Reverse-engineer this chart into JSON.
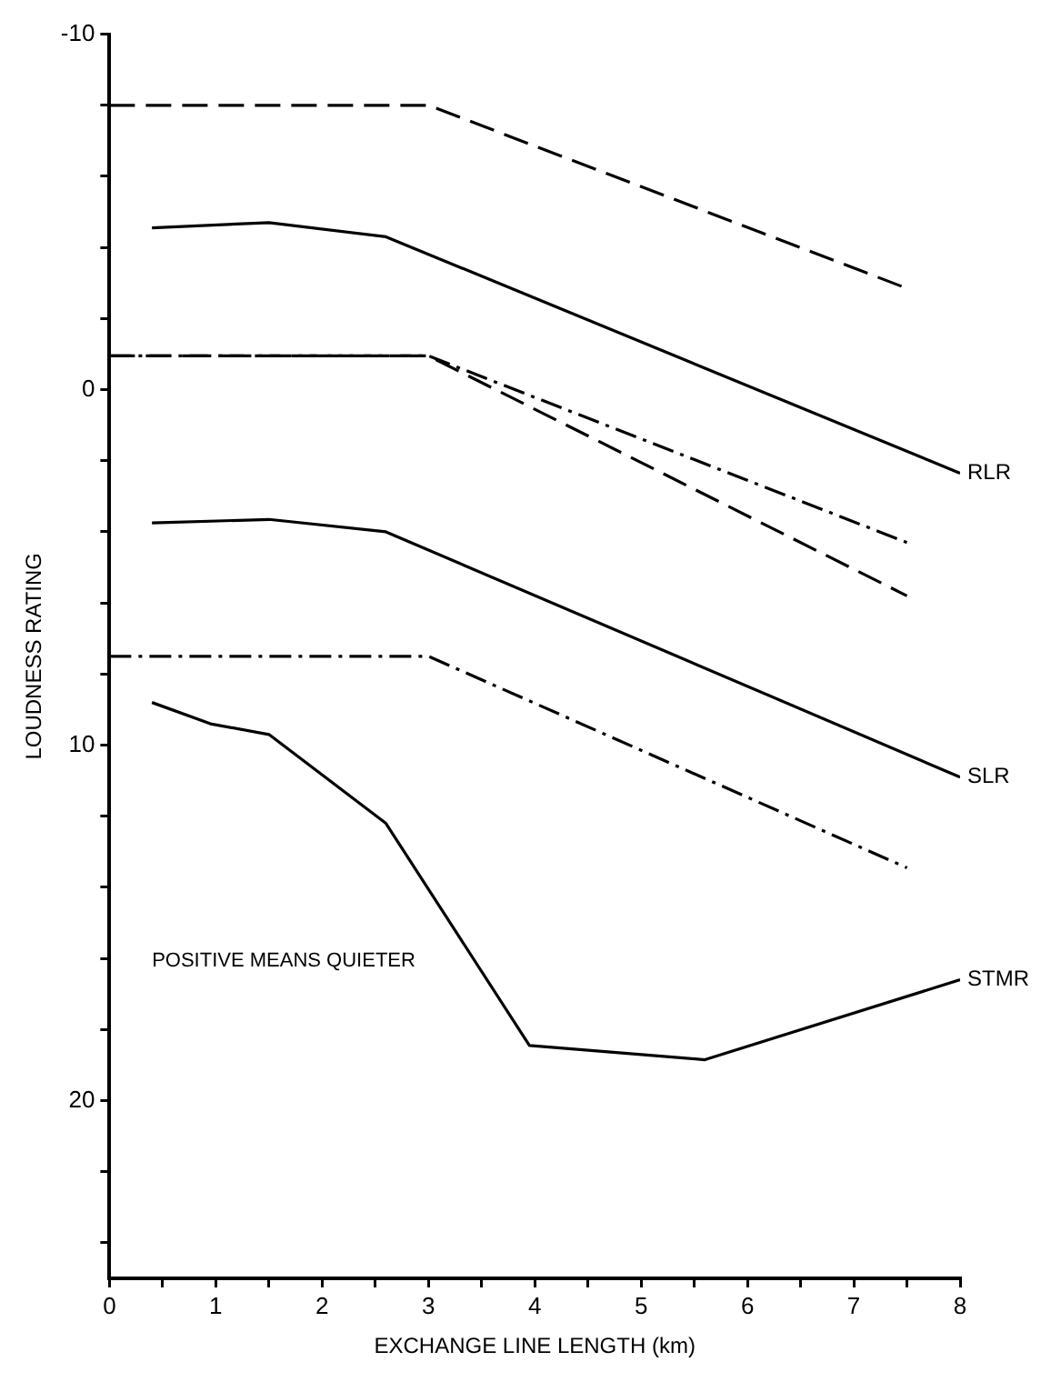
{
  "chart_data": {
    "type": "line",
    "xlabel": "EXCHANGE LINE LENGTH (km)",
    "ylabel": "LOUDNESS RATING",
    "annotations": [
      "POSITIVE MEANS QUIETER"
    ],
    "xlim": [
      0,
      8
    ],
    "xticks": [
      0,
      {
        "value": 0.5,
        "label": null
      },
      1,
      {
        "value": 1.5,
        "label": null
      },
      2,
      {
        "value": 2.5,
        "label": null
      },
      3,
      {
        "value": 3.5,
        "label": null
      },
      4,
      {
        "value": 4.5,
        "label": null
      },
      5,
      {
        "value": 5.5,
        "label": null
      },
      6,
      {
        "value": 6.5,
        "label": null
      },
      7,
      {
        "value": 7.5,
        "label": null
      },
      8
    ],
    "ylim": [
      25,
      -10
    ],
    "yticks": [
      -10,
      {
        "value": -8,
        "label": null
      },
      {
        "value": -6,
        "label": null
      },
      {
        "value": -4,
        "label": null
      },
      {
        "value": -2,
        "label": null
      },
      0,
      {
        "value": 2,
        "label": null
      },
      {
        "value": 4,
        "label": null
      },
      {
        "value": 6,
        "label": null
      },
      {
        "value": 8,
        "label": null
      },
      10,
      {
        "value": 12,
        "label": null
      },
      {
        "value": 14,
        "label": null
      },
      {
        "value": 16,
        "label": null
      },
      {
        "value": 18,
        "label": null
      },
      20,
      {
        "value": 22,
        "label": null
      },
      {
        "value": 24,
        "label": null
      }
    ],
    "grid": false,
    "legend": false,
    "marker": "none",
    "series": [
      {
        "color": "#000000",
        "line_style": "dashed",
        "x": [
          0,
          3,
          7.5
        ],
        "values": [
          -8.0,
          -8.0,
          -2.85
        ]
      },
      {
        "name": "RLR",
        "color": "#000000",
        "line_style": "solid",
        "x": [
          0.4,
          1.5,
          2.6,
          8
        ],
        "values": [
          -4.55,
          -4.7,
          -4.3,
          2.35
        ]
      },
      {
        "color": "#000000",
        "line_style": "dashdot",
        "x": [
          0,
          3,
          7.5
        ],
        "values": [
          -0.95,
          -0.95,
          4.3
        ]
      },
      {
        "color": "#000000",
        "line_style": "dashed",
        "x": [
          0,
          3,
          7.5
        ],
        "values": [
          -0.95,
          -0.95,
          5.8
        ]
      },
      {
        "name": "SLR",
        "color": "#000000",
        "line_style": "solid",
        "x": [
          0.4,
          1.5,
          2.6,
          8
        ],
        "values": [
          3.75,
          3.65,
          4.0,
          10.9
        ]
      },
      {
        "color": "#000000",
        "line_style": "dashdot",
        "x": [
          0,
          3,
          7.5
        ],
        "values": [
          7.5,
          7.5,
          13.45
        ]
      },
      {
        "name": "STMR",
        "color": "#000000",
        "line_style": "solid",
        "x": [
          0.4,
          0.95,
          1.5,
          2.6,
          3.95,
          5.6,
          8
        ],
        "values": [
          8.8,
          9.4,
          9.7,
          12.2,
          18.45,
          18.85,
          16.6
        ]
      }
    ]
  }
}
